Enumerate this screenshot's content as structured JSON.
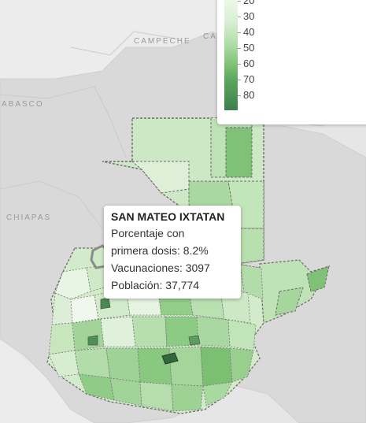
{
  "map": {
    "region_labels": [
      "CAMPECHE",
      "CA",
      "ABASCO",
      "CHIAPAS"
    ],
    "colors": {
      "background": "#e4e4e4",
      "land": "#d9d9d9",
      "border": "#707070",
      "highlight": "#2f6a3a",
      "scale_low": "#f4fbf2",
      "scale_high": "#3f7f4f"
    }
  },
  "legend": {
    "ticks": [
      "20",
      "30",
      "40",
      "50",
      "60",
      "70",
      "80"
    ]
  },
  "tooltip": {
    "title": "SAN MATEO IXTATAN",
    "line1": "Porcentaje con",
    "line2": "primera dosis: 8.2%",
    "line3": "Vacunaciones: 3097",
    "line4": "Población: 37,774"
  }
}
